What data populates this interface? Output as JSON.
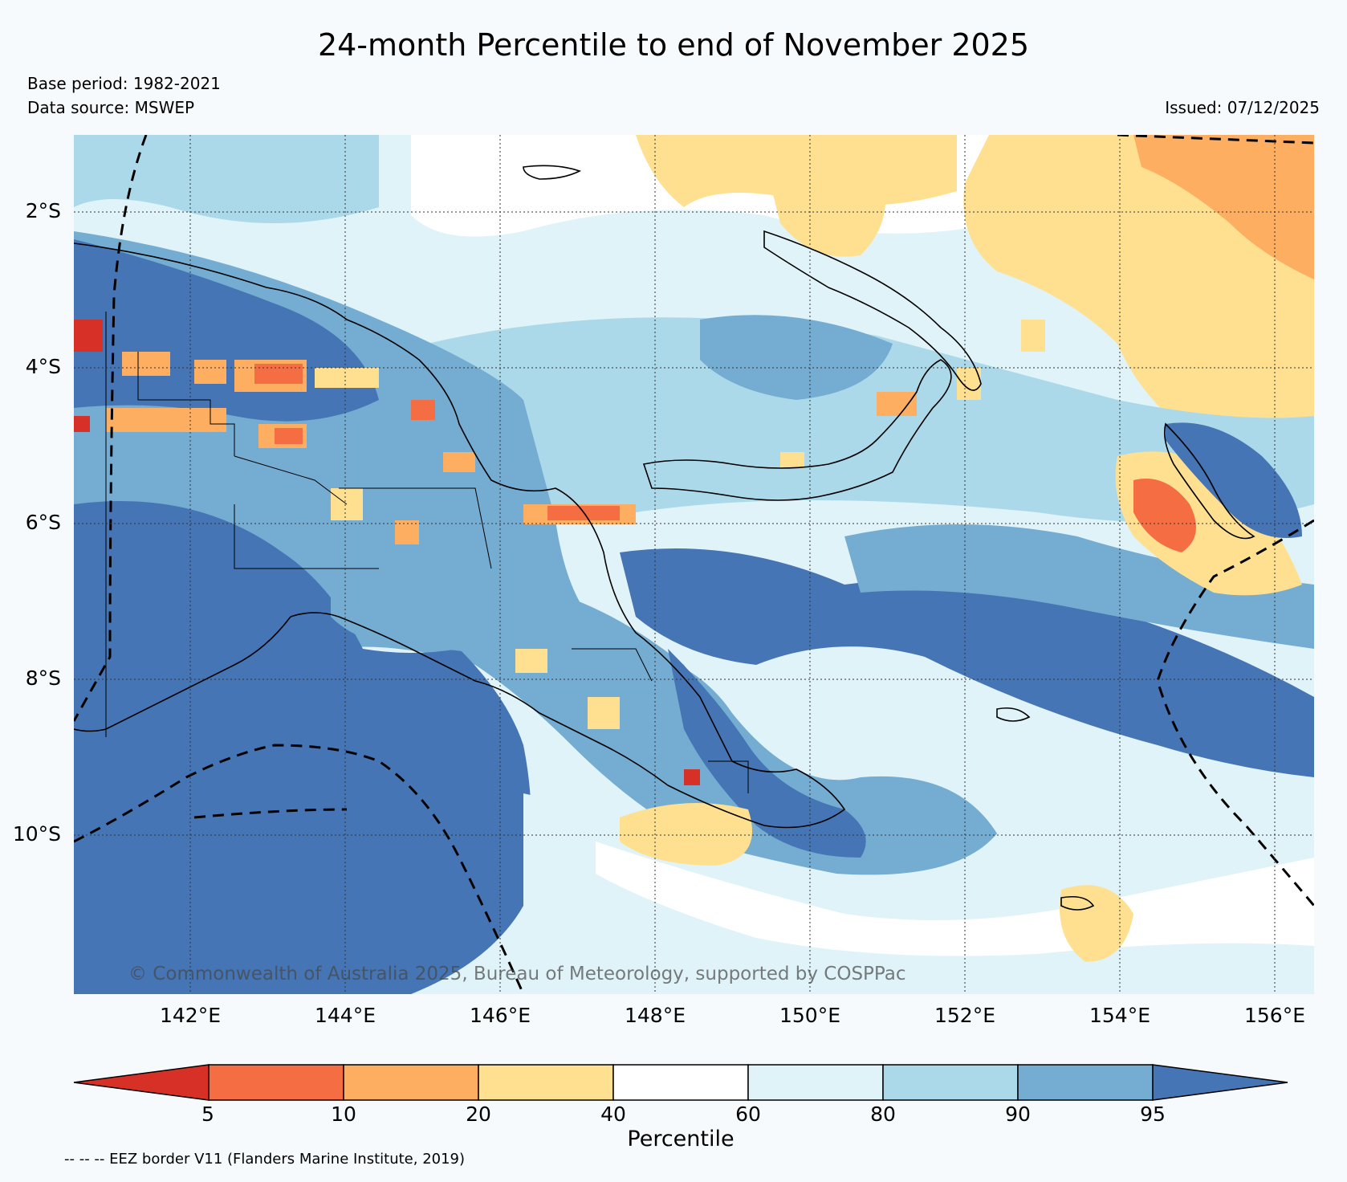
{
  "title": "24-month Percentile to end of November 2025",
  "base_period": "Base period: 1982-2021",
  "data_source": "Data source: MSWEP",
  "issued": "Issued: 07/12/2025",
  "copyright": "© Commonwealth of Australia 2025, Bureau of Meteorology, supported by COSPPac",
  "lat_labels": [
    "2°S",
    "4°S",
    "6°S",
    "8°S",
    "10°S"
  ],
  "lon_labels": [
    "142°E",
    "144°E",
    "146°E",
    "148°E",
    "150°E",
    "152°E",
    "154°E",
    "156°E"
  ],
  "colorbar": {
    "title": "Percentile",
    "ticks": [
      "5",
      "10",
      "20",
      "40",
      "60",
      "80",
      "90",
      "95"
    ],
    "colors": [
      "#d73027",
      "#f46d43",
      "#fdae61",
      "#fee090",
      "#ffffff",
      "#e0f3f8",
      "#abd9e9",
      "#74add1",
      "#4575b4"
    ]
  },
  "eez_note": "-- -- -- EEZ border V11 (Flanders Marine Institute, 2019)"
}
